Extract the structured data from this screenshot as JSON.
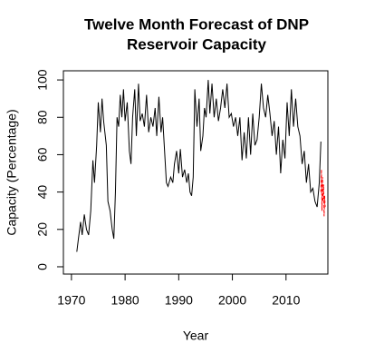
{
  "chart_data": {
    "type": "line",
    "title": [
      "Twelve Month Forecast of DNP",
      "Reservoir Capacity"
    ],
    "x_label": "Year",
    "y_label": "Capacity (Percentage)",
    "xlim": [
      1968.5,
      2017.8
    ],
    "ylim": [
      -3.9,
      104.9
    ],
    "xticks": [
      1970,
      1980,
      1990,
      2000,
      2010
    ],
    "yticks": [
      0,
      20,
      40,
      60,
      80,
      100
    ],
    "series": [
      {
        "color": "#000000",
        "dash": false,
        "x": [
          1971.0,
          1971.3,
          1971.7,
          1972.0,
          1972.4,
          1972.8,
          1973.2,
          1973.6,
          1974.0,
          1974.3,
          1974.7,
          1975.0,
          1975.4,
          1975.7,
          1976.0,
          1976.5,
          1976.8,
          1977.2,
          1977.6,
          1977.9,
          1978.2,
          1978.5,
          1978.8,
          1979.1,
          1979.4,
          1979.7,
          1980.0,
          1980.4,
          1980.8,
          1981.1,
          1981.4,
          1981.8,
          1982.1,
          1982.5,
          1982.8,
          1983.2,
          1983.6,
          1984.0,
          1984.4,
          1984.8,
          1985.2,
          1985.6,
          1985.9,
          1986.3,
          1986.7,
          1987.0,
          1987.4,
          1987.7,
          1988.0,
          1988.5,
          1988.9,
          1989.2,
          1989.6,
          1990.0,
          1990.3,
          1990.7,
          1991.1,
          1991.5,
          1991.8,
          1992.1,
          1992.4,
          1992.7,
          1993.0,
          1993.4,
          1993.8,
          1994.1,
          1994.5,
          1994.8,
          1995.1,
          1995.5,
          1995.8,
          1996.2,
          1996.6,
          1997.0,
          1997.4,
          1997.8,
          1998.2,
          1998.6,
          1999.0,
          1999.4,
          1999.8,
          2000.2,
          2000.6,
          2001.0,
          2001.4,
          2001.8,
          2002.2,
          2002.6,
          2003.0,
          2003.4,
          2003.8,
          2004.2,
          2004.6,
          2005.0,
          2005.4,
          2005.8,
          2006.2,
          2006.6,
          2007.0,
          2007.4,
          2007.8,
          2008.2,
          2008.6,
          2009.0,
          2009.4,
          2009.8,
          2010.2,
          2010.6,
          2011.0,
          2011.4,
          2011.8,
          2012.2,
          2012.6,
          2013.0,
          2013.4,
          2013.8,
          2014.2,
          2014.6,
          2015.0,
          2015.4,
          2015.8,
          2016.2,
          2016.5
        ],
        "values": [
          8,
          15,
          24,
          17,
          28,
          20,
          17,
          30,
          57,
          45,
          65,
          88,
          72,
          90,
          78,
          65,
          35,
          30,
          20,
          15,
          40,
          80,
          75,
          92,
          80,
          95,
          78,
          88,
          62,
          55,
          80,
          95,
          70,
          98,
          78,
          82,
          75,
          92,
          72,
          80,
          75,
          85,
          70,
          91,
          72,
          80,
          60,
          45,
          43,
          48,
          45,
          55,
          62,
          50,
          63,
          48,
          52,
          45,
          50,
          40,
          38,
          48,
          95,
          75,
          90,
          62,
          70,
          85,
          80,
          100,
          82,
          98,
          80,
          90,
          78,
          85,
          95,
          85,
          98,
          80,
          82,
          75,
          80,
          70,
          80,
          57,
          72,
          58,
          80,
          60,
          82,
          65,
          68,
          80,
          98,
          85,
          80,
          92,
          82,
          70,
          78,
          60,
          75,
          50,
          68,
          58,
          88,
          70,
          95,
          75,
          90,
          75,
          70,
          55,
          62,
          45,
          55,
          40,
          42,
          35,
          32,
          45,
          67
        ]
      },
      {
        "color": "#ff0000",
        "dash": true,
        "x": [
          2016.5,
          2016.6,
          2016.7,
          2016.8,
          2016.9,
          2017.0,
          2017.1,
          2017.2,
          2017.3
        ],
        "values": [
          40,
          52,
          30,
          48,
          35,
          44,
          27,
          38,
          32
        ]
      }
    ]
  }
}
